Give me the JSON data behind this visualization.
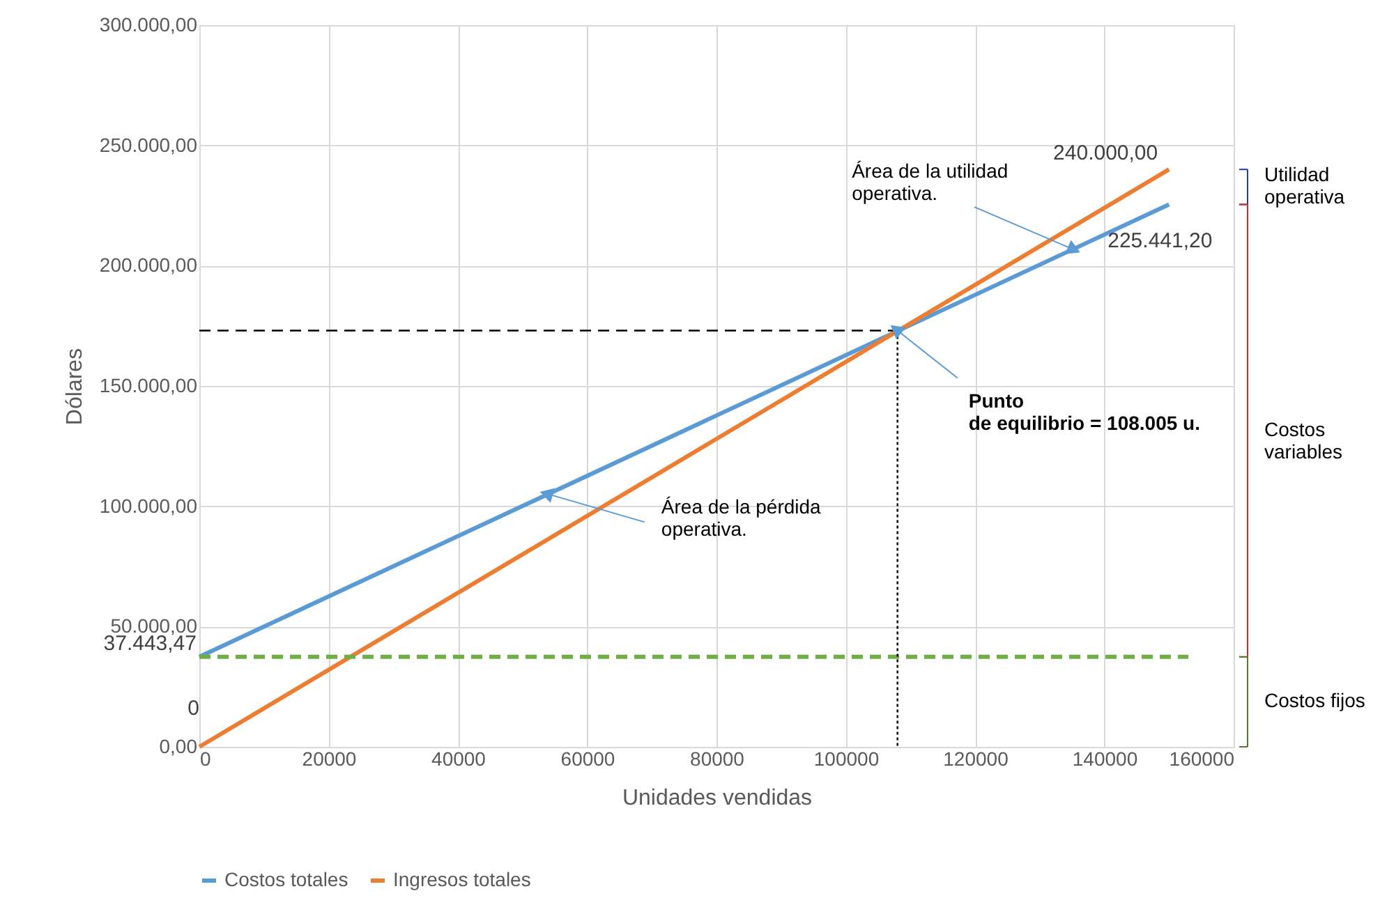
{
  "chart_data": {
    "type": "line",
    "xlabel": "Unidades vendidas",
    "ylabel": "Dólares",
    "xlim": [
      0,
      160000
    ],
    "xticks": [
      0,
      20000,
      40000,
      60000,
      80000,
      100000,
      120000,
      140000,
      160000
    ],
    "ylim": [
      0,
      300000
    ],
    "yticks": [
      {
        "value": 0,
        "label": "0,00"
      },
      {
        "value": 50000,
        "label": "50.000,00"
      },
      {
        "value": 100000,
        "label": "100.000,00"
      },
      {
        "value": 150000,
        "label": "150.000,00"
      },
      {
        "value": 200000,
        "label": "200.000,00"
      },
      {
        "value": 250000,
        "label": "250.000,00"
      },
      {
        "value": 300000,
        "label": "300.000,00"
      }
    ],
    "grid": true,
    "legend": "bottom",
    "series": [
      {
        "name": "Costos totales",
        "color": "#5b9bd5",
        "x": [
          0,
          150000
        ],
        "values": [
          37443.47,
          225441.2
        ],
        "value_labels": [
          "37.443,47",
          "225.441,20"
        ]
      },
      {
        "name": "Ingresos totales",
        "color": "#ed7d31",
        "x": [
          0,
          150000
        ],
        "values": [
          0,
          240000
        ],
        "value_labels": [
          "0",
          "240.000,00"
        ]
      },
      {
        "color": "#70ad47",
        "x": [
          0,
          153000
        ],
        "values": [
          37400,
          37400
        ],
        "line_style": "dashed"
      },
      {
        "color": "#000000",
        "x": [
          0,
          108005
        ],
        "values": [
          173000,
          173000
        ],
        "line_style": "dashed"
      },
      {
        "color": "#000000",
        "x": [
          108005,
          108005
        ],
        "values": [
          173000,
          0
        ],
        "line_style": "dotted"
      }
    ],
    "annotations": [
      {
        "text": "Área de la utilidad\noperativa.",
        "x": 135000,
        "y": 207000
      },
      {
        "text": "Punto\nde equilibrio = 108.005 u.",
        "x": 108005,
        "y": 173000
      },
      {
        "text": "Área de la pérdida\noperativa.",
        "x": 54000,
        "y": 105000
      },
      "Utilidad\noperativa",
      "Costos\nvariables",
      "Costos fijos"
    ]
  }
}
